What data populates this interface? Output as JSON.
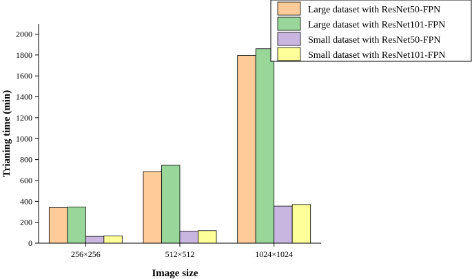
{
  "chart_data": {
    "type": "bar",
    "xlabel": "Image size",
    "ylabel": "Trianing time (min)",
    "categories": [
      "256×256",
      "512×512",
      "1024×1024"
    ],
    "ylim": [
      0,
      2100
    ],
    "yticks": [
      0,
      200,
      400,
      600,
      800,
      1000,
      1200,
      1400,
      1600,
      1800,
      2000
    ],
    "grid": false,
    "legend_position": "top-right",
    "series": [
      {
        "name": "Large dataset with ResNet50-FPN",
        "color": "#FFCC99",
        "values": [
          340,
          685,
          1795
        ]
      },
      {
        "name": "Large dataset with ResNet101-FPN",
        "color": "#99D699",
        "values": [
          345,
          745,
          1860
        ]
      },
      {
        "name": "Small dataset with ResNet50-FPN",
        "color": "#C8B6E0",
        "values": [
          65,
          115,
          355
        ]
      },
      {
        "name": "Small dataset with ResNet101-FPN",
        "color": "#FFFF99",
        "values": [
          70,
          120,
          370
        ]
      }
    ]
  }
}
